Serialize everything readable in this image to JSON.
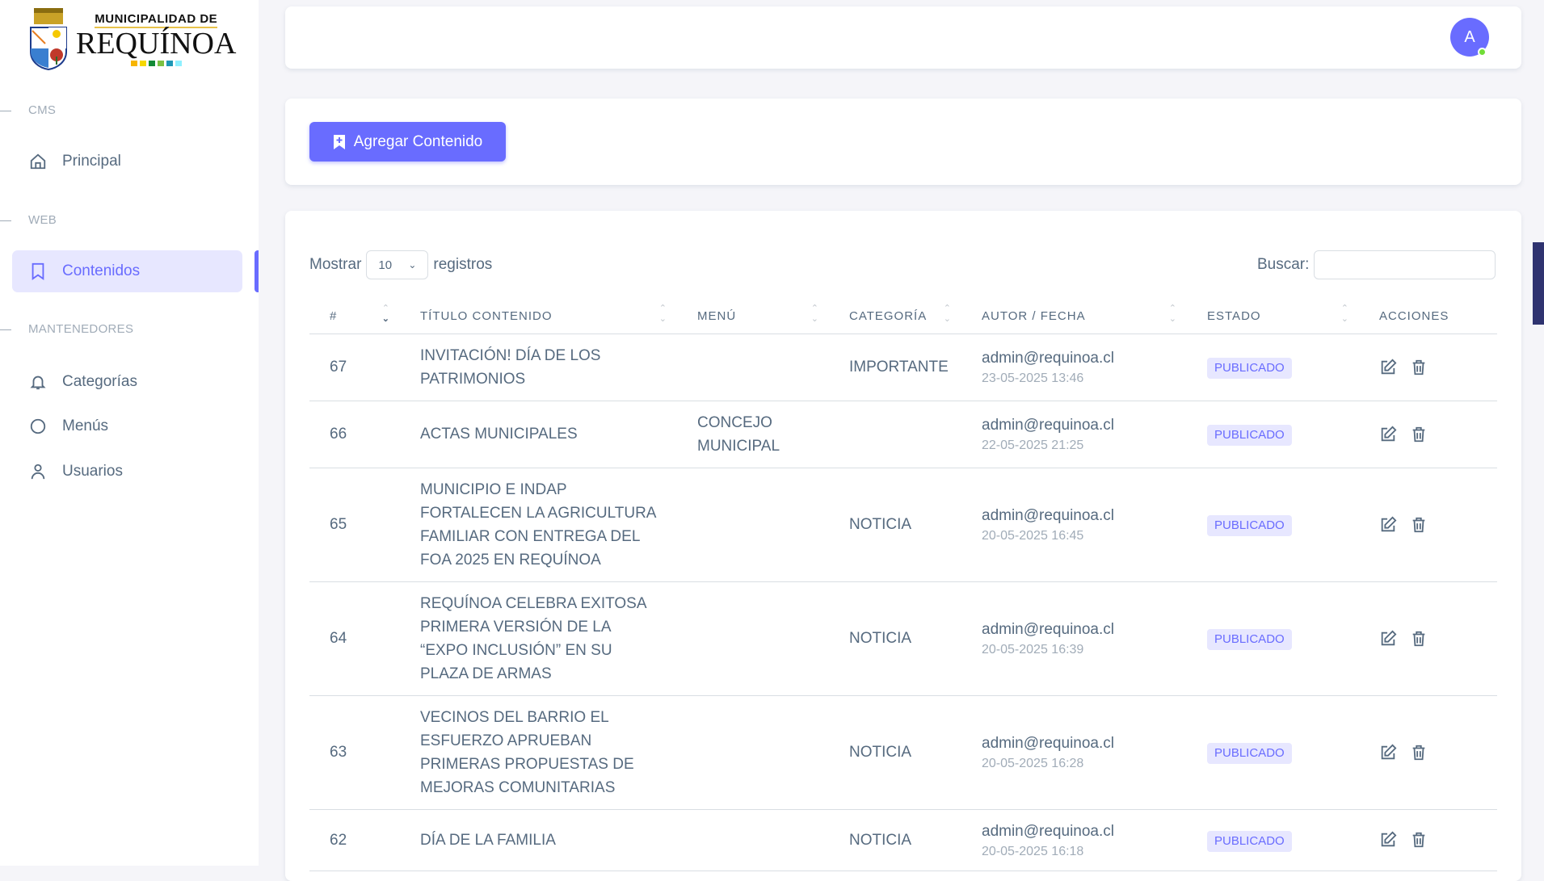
{
  "logo": {
    "line1": "MUNICIPALIDAD DE",
    "line2": "REQUÍNOA",
    "colors": [
      "#f7b500",
      "#f5d800",
      "#138a36",
      "#7cc142",
      "#1d97b5",
      "#8ff0ff"
    ]
  },
  "sidebar": {
    "sections": [
      {
        "label": "CMS"
      },
      {
        "label": "WEB"
      },
      {
        "label": "MANTENEDORES"
      }
    ],
    "items": [
      {
        "label": "Principal",
        "icon": "home-icon"
      },
      {
        "label": "Contenidos",
        "icon": "bookmark-icon",
        "active": true
      },
      {
        "label": "Categorías",
        "icon": "bell-icon"
      },
      {
        "label": "Menús",
        "icon": "circle-icon"
      },
      {
        "label": "Usuarios",
        "icon": "user-icon"
      }
    ]
  },
  "header": {
    "avatar_initial": "A",
    "status": "online"
  },
  "toolbar": {
    "add_label": "Agregar Contenido"
  },
  "accent": "#696cff",
  "table_controls": {
    "show_label": "Mostrar",
    "page_size": "10",
    "records_label": "registros",
    "search_label": "Buscar:",
    "search_value": ""
  },
  "table": {
    "columns": [
      "#",
      "Título Contenido",
      "Menú",
      "Categoría",
      "Autor / Fecha",
      "Estado",
      "Acciones"
    ],
    "rows": [
      {
        "id": "67",
        "title": "INVITACIÓN! DÍA DE LOS\nPATRIMONIOS",
        "menu": "",
        "category": "IMPORTANTE",
        "author": "admin@requinoa.cl",
        "date": "23-05-2025 13:46",
        "status": "PUBLICADO"
      },
      {
        "id": "66",
        "title": "ACTAS MUNICIPALES",
        "menu": "CONCEJO\nMUNICIPAL",
        "category": "",
        "author": "admin@requinoa.cl",
        "date": "22-05-2025 21:25",
        "status": "PUBLICADO"
      },
      {
        "id": "65",
        "title": "MUNICIPIO E INDAP\nFORTALECEN LA AGRICULTURA\nFAMILIAR CON ENTREGA DEL\nFOA 2025 EN REQUÍNOA",
        "menu": "",
        "category": "NOTICIA",
        "author": "admin@requinoa.cl",
        "date": "20-05-2025 16:45",
        "status": "PUBLICADO"
      },
      {
        "id": "64",
        "title": "REQUÍNOA CELEBRA EXITOSA\nPRIMERA VERSIÓN DE LA\n“EXPO INCLUSIÓN” EN SU\nPLAZA DE ARMAS",
        "menu": "",
        "category": "NOTICIA",
        "author": "admin@requinoa.cl",
        "date": "20-05-2025 16:39",
        "status": "PUBLICADO"
      },
      {
        "id": "63",
        "title": "VECINOS DEL BARRIO EL\nESFUERZO APRUEBAN\nPRIMERAS PROPUESTAS DE\nMEJORAS COMUNITARIAS",
        "menu": "",
        "category": "NOTICIA",
        "author": "admin@requinoa.cl",
        "date": "20-05-2025 16:28",
        "status": "PUBLICADO"
      },
      {
        "id": "62",
        "title": "DÍA DE LA FAMILIA",
        "menu": "",
        "category": "NOTICIA",
        "author": "admin@requinoa.cl",
        "date": "20-05-2025 16:18",
        "status": "PUBLICADO"
      }
    ]
  }
}
